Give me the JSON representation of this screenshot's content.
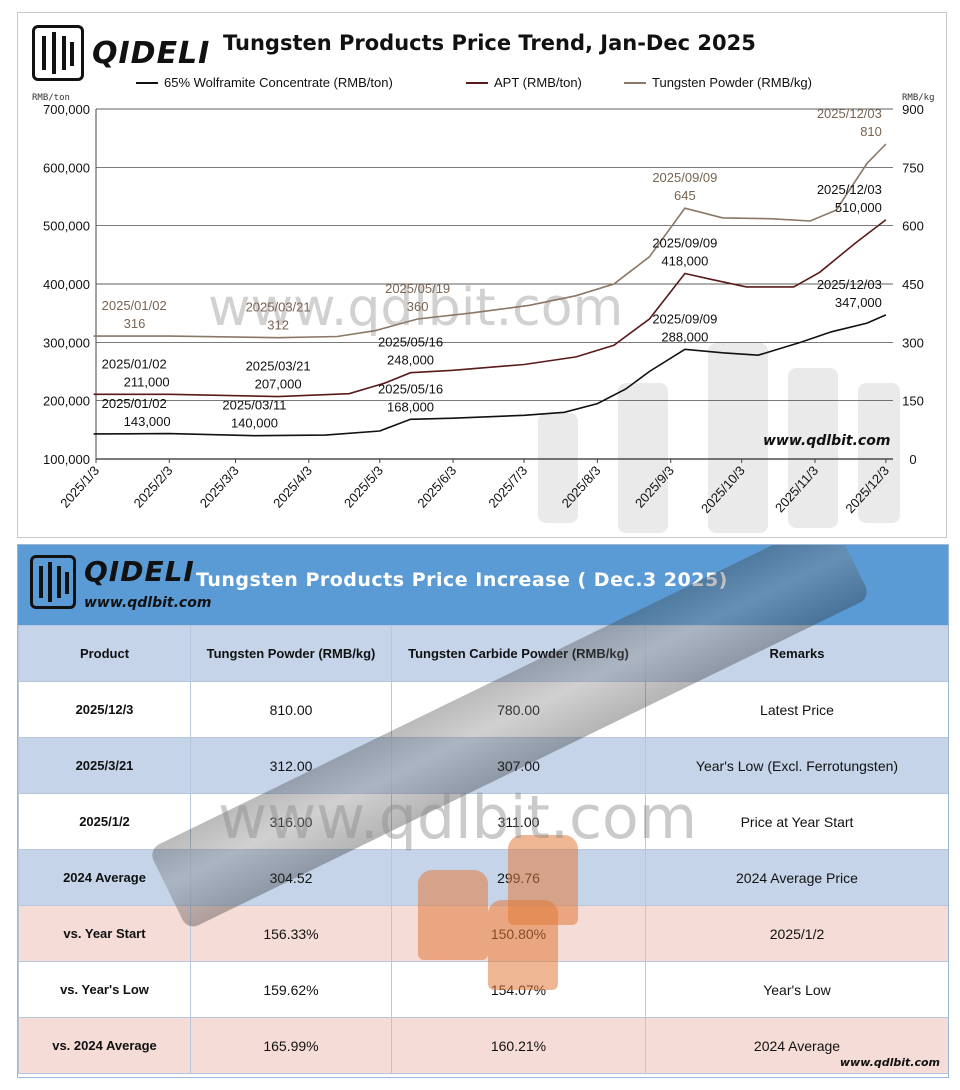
{
  "chart": {
    "brand": "QIDELI",
    "title": "Tungsten Products Price Trend, Jan-Dec 2025",
    "unit_left": "RMB/ton",
    "unit_right": "RMB/kg",
    "watermark": "www.qdlbit.com",
    "watermark_small": "www.qdlbit.com"
  },
  "chart_data": {
    "type": "line",
    "x_categories": [
      "2025/1/3",
      "2025/2/3",
      "2025/3/3",
      "2025/4/3",
      "2025/5/3",
      "2025/6/3",
      "2025/7/3",
      "2025/8/3",
      "2025/9/3",
      "2025/10/3",
      "2025/11/3",
      "2025/12/3"
    ],
    "x_range": [
      "2025-01-03",
      "2025-12-06"
    ],
    "ylim_left": [
      100000,
      700000
    ],
    "yticks_left": [
      "100,000",
      "200,000",
      "300,000",
      "400,000",
      "500,000",
      "600,000",
      "700,000"
    ],
    "ylim_right": [
      0,
      900
    ],
    "yticks_right": [
      "0",
      "150",
      "300",
      "450",
      "600",
      "750",
      "900"
    ],
    "grid": "horizontal",
    "legend_position": "top",
    "series": [
      {
        "name": "65% Wolframite Concentrate (RMB/ton)",
        "axis": "left",
        "color": "#111111",
        "points": [
          [
            "2025-01-02",
            143000
          ],
          [
            "2025-02-03",
            143500
          ],
          [
            "2025-03-11",
            140000
          ],
          [
            "2025-04-10",
            141000
          ],
          [
            "2025-05-03",
            148000
          ],
          [
            "2025-05-16",
            168000
          ],
          [
            "2025-06-03",
            170000
          ],
          [
            "2025-07-03",
            175000
          ],
          [
            "2025-07-20",
            180000
          ],
          [
            "2025-08-03",
            195000
          ],
          [
            "2025-08-15",
            220000
          ],
          [
            "2025-08-25",
            250000
          ],
          [
            "2025-09-09",
            288000
          ],
          [
            "2025-09-25",
            282000
          ],
          [
            "2025-10-10",
            278000
          ],
          [
            "2025-10-28",
            300000
          ],
          [
            "2025-11-10",
            318000
          ],
          [
            "2025-11-25",
            333000
          ],
          [
            "2025-12-03",
            347000
          ]
        ]
      },
      {
        "name": "APT (RMB/ton)",
        "axis": "left",
        "color": "#5a1a1a",
        "points": [
          [
            "2025-01-02",
            211000
          ],
          [
            "2025-02-03",
            211000
          ],
          [
            "2025-03-21",
            207000
          ],
          [
            "2025-04-20",
            212000
          ],
          [
            "2025-05-05",
            230000
          ],
          [
            "2025-05-16",
            248000
          ],
          [
            "2025-06-03",
            252000
          ],
          [
            "2025-07-03",
            262000
          ],
          [
            "2025-07-25",
            275000
          ],
          [
            "2025-08-10",
            295000
          ],
          [
            "2025-08-25",
            340000
          ],
          [
            "2025-09-09",
            418000
          ],
          [
            "2025-09-20",
            408000
          ],
          [
            "2025-10-05",
            395000
          ],
          [
            "2025-10-25",
            395000
          ],
          [
            "2025-11-05",
            420000
          ],
          [
            "2025-11-20",
            470000
          ],
          [
            "2025-12-03",
            510000
          ]
        ]
      },
      {
        "name": "Tungsten Powder (RMB/kg)",
        "axis": "right",
        "color": "#8b7765",
        "points": [
          [
            "2025-01-02",
            316
          ],
          [
            "2025-02-03",
            316
          ],
          [
            "2025-03-21",
            312
          ],
          [
            "2025-04-15",
            315
          ],
          [
            "2025-05-01",
            330
          ],
          [
            "2025-05-19",
            360
          ],
          [
            "2025-06-10",
            375
          ],
          [
            "2025-07-05",
            395
          ],
          [
            "2025-07-25",
            420
          ],
          [
            "2025-08-10",
            450
          ],
          [
            "2025-08-25",
            520
          ],
          [
            "2025-09-09",
            645
          ],
          [
            "2025-09-25",
            620
          ],
          [
            "2025-10-15",
            618
          ],
          [
            "2025-11-01",
            612
          ],
          [
            "2025-11-12",
            640
          ],
          [
            "2025-11-25",
            760
          ],
          [
            "2025-12-03",
            810
          ]
        ]
      }
    ],
    "annotations": [
      {
        "series": 0,
        "date": "2025/01/02",
        "value": "143,000",
        "x": "2025-01-02",
        "y": 143000
      },
      {
        "series": 0,
        "date": "2025/03/11",
        "value": "140,000",
        "x": "2025-03-11",
        "y": 140000
      },
      {
        "series": 0,
        "date": "2025/05/16",
        "value": "168,000",
        "x": "2025-05-16",
        "y": 168000
      },
      {
        "series": 0,
        "date": "2025/09/09",
        "value": "288,000",
        "x": "2025-09-09",
        "y": 288000
      },
      {
        "series": 0,
        "date": "2025/12/03",
        "value": "347,000",
        "x": "2025-12-03",
        "y": 347000
      },
      {
        "series": 1,
        "date": "2025/01/02",
        "value": "211,000",
        "x": "2025-01-02",
        "y": 211000
      },
      {
        "series": 1,
        "date": "2025/03/21",
        "value": "207,000",
        "x": "2025-03-21",
        "y": 207000
      },
      {
        "series": 1,
        "date": "2025/05/16",
        "value": "248,000",
        "x": "2025-05-16",
        "y": 248000
      },
      {
        "series": 1,
        "date": "2025/09/09",
        "value": "418,000",
        "x": "2025-09-09",
        "y": 418000
      },
      {
        "series": 1,
        "date": "2025/12/03",
        "value": "510,000",
        "x": "2025-12-03",
        "y": 510000
      },
      {
        "series": 2,
        "date": "2025/01/02",
        "value": "316",
        "x": "2025-01-02",
        "y": 316
      },
      {
        "series": 2,
        "date": "2025/03/21",
        "value": "312",
        "x": "2025-03-21",
        "y": 312
      },
      {
        "series": 2,
        "date": "2025/05/19",
        "value": "360",
        "x": "2025-05-19",
        "y": 360
      },
      {
        "series": 2,
        "date": "2025/09/09",
        "value": "645",
        "x": "2025-09-09",
        "y": 645
      },
      {
        "series": 2,
        "date": "2025/12/03",
        "value": "810",
        "x": "2025-12-03",
        "y": 810
      }
    ]
  },
  "table": {
    "brand": "QIDELI",
    "url": "www.qdlbit.com",
    "title": "Tungsten Products Price Increase ( Dec.3 2025)",
    "watermark": "www.qdlbit.com",
    "footer_url": "www.qdlbit.com",
    "headers": [
      "Product",
      "Tungsten Powder (RMB/kg)",
      "Tungsten Carbide Powder (RMB/kg)",
      "Remarks"
    ],
    "rows": [
      {
        "style": "white",
        "cells": [
          "2025/12/3",
          "810.00",
          "780.00",
          "Latest Price"
        ]
      },
      {
        "style": "blue",
        "cells": [
          "2025/3/21",
          "312.00",
          "307.00",
          "Year's Low (Excl. Ferrotungsten)"
        ]
      },
      {
        "style": "white",
        "cells": [
          "2025/1/2",
          "316.00",
          "311.00",
          "Price at Year Start"
        ]
      },
      {
        "style": "blue",
        "cells": [
          "2024 Average",
          "304.52",
          "299.76",
          "2024 Average Price"
        ]
      },
      {
        "style": "pink",
        "cells": [
          "vs. Year Start",
          "156.33%",
          "150.80%",
          "2025/1/2"
        ]
      },
      {
        "style": "white",
        "cells": [
          "vs. Year's Low",
          "159.62%",
          "154.07%",
          "Year's Low"
        ]
      },
      {
        "style": "pink",
        "cells": [
          "vs. 2024 Average",
          "165.99%",
          "160.21%",
          "2024 Average"
        ]
      }
    ]
  }
}
